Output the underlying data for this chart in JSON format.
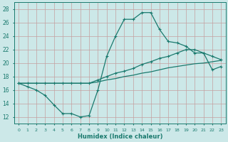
{
  "xlabel": "Humidex (Indice chaleur)",
  "xlim": [
    -0.5,
    23.5
  ],
  "ylim": [
    11,
    29
  ],
  "yticks": [
    12,
    14,
    16,
    18,
    20,
    22,
    24,
    26,
    28
  ],
  "bg_color": "#cce8e8",
  "grid_color": "#c4a0a0",
  "line_color": "#1a7a6e",
  "line1_y": [
    17.0,
    16.5,
    16.0,
    15.2,
    13.8,
    12.5,
    12.5,
    12.0,
    12.2,
    16.0,
    21.0,
    24.0,
    26.5,
    26.5,
    27.5,
    27.5,
    25.0,
    23.2,
    23.0,
    22.5,
    21.5,
    21.5,
    19.0,
    19.5
  ],
  "line2_y": [
    17.0,
    17.0,
    17.0,
    17.0,
    17.0,
    17.0,
    17.0,
    17.0,
    17.0,
    17.5,
    18.0,
    18.5,
    18.8,
    19.2,
    19.8,
    20.2,
    20.7,
    21.0,
    21.5,
    22.0,
    22.0,
    21.5,
    21.0,
    20.5
  ],
  "line3_y": [
    17.0,
    17.0,
    17.0,
    17.0,
    17.0,
    17.0,
    17.0,
    17.0,
    17.0,
    17.2,
    17.5,
    17.7,
    18.0,
    18.2,
    18.5,
    18.7,
    19.0,
    19.3,
    19.5,
    19.7,
    19.9,
    20.0,
    20.2,
    20.4
  ]
}
